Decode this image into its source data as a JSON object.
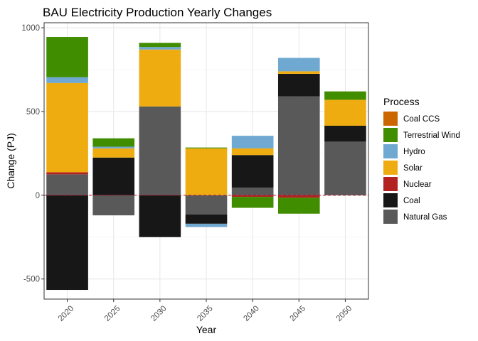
{
  "chart_data": {
    "type": "bar",
    "stacked": true,
    "title": "BAU Electricity Production Yearly Changes",
    "xlabel": "Year",
    "ylabel": "Change (PJ)",
    "categories": [
      "2020",
      "2025",
      "2030",
      "2035",
      "2040",
      "2045",
      "2050"
    ],
    "ylim": [
      -620,
      1030
    ],
    "yticks": [
      -500,
      0,
      500,
      1000
    ],
    "grid": true,
    "zero_line_color": "#b2182b",
    "legend": {
      "title": "Process",
      "placement": "right",
      "entries": [
        "Coal CCS",
        "Terrestrial Wind",
        "Hydro",
        "Solar",
        "Nuclear",
        "Coal",
        "Natural Gas"
      ]
    },
    "series": [
      {
        "name": "Natural Gas",
        "color": "#595959",
        "values": [
          125,
          -120,
          530,
          -115,
          45,
          590,
          320
        ]
      },
      {
        "name": "Coal",
        "color": "#171717",
        "values": [
          -565,
          225,
          -250,
          -55,
          195,
          135,
          95
        ]
      },
      {
        "name": "Nuclear",
        "color": "#b22222",
        "values": [
          12,
          0,
          0,
          0,
          -10,
          -15,
          0
        ]
      },
      {
        "name": "Solar",
        "color": "#eeac10",
        "values": [
          533,
          55,
          340,
          280,
          40,
          15,
          155
        ]
      },
      {
        "name": "Hydro",
        "color": "#6fa8d0",
        "values": [
          35,
          10,
          15,
          -20,
          75,
          80,
          0
        ]
      },
      {
        "name": "Terrestrial Wind",
        "color": "#418d00",
        "values": [
          240,
          50,
          25,
          5,
          -65,
          -95,
          50
        ]
      },
      {
        "name": "Coal CCS",
        "color": "#cc6600",
        "values": [
          0,
          0,
          0,
          0,
          0,
          0,
          0
        ]
      }
    ]
  }
}
